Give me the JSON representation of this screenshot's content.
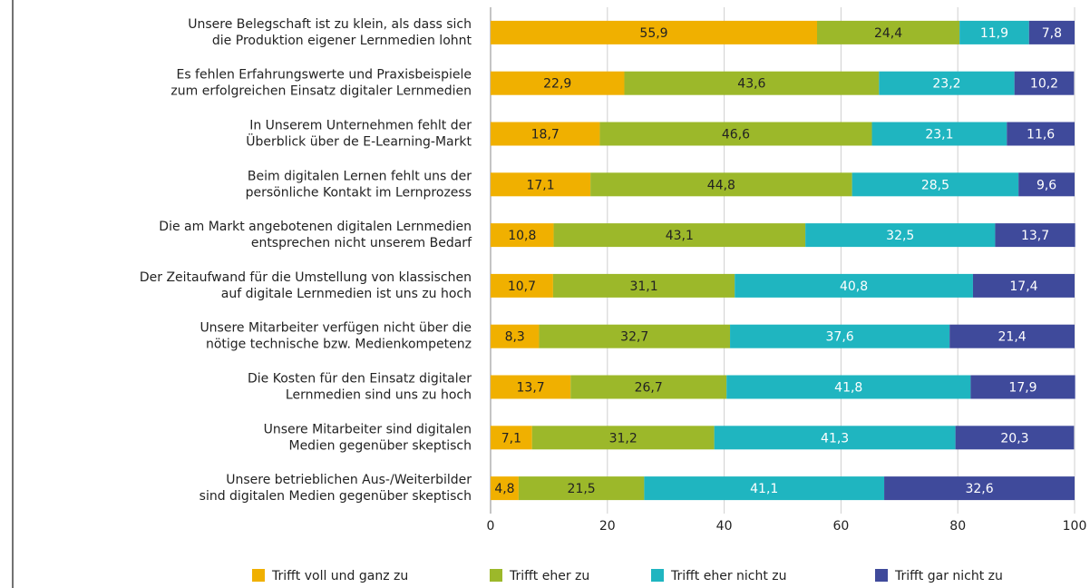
{
  "chart_data": {
    "type": "stacked-barh",
    "categories": [
      [
        "Unsere Belegschaft ist zu klein, als dass sich",
        "die Produktion eigener Lernmedien lohnt"
      ],
      [
        "Es fehlen Erfahrungswerte und Praxisbeispiele",
        "zum erfolgreichen Einsatz digitaler Lernmedien"
      ],
      [
        "In Unserem Unternehmen fehlt der",
        "Überblick über de E-Learning-Markt"
      ],
      [
        "Beim digitalen Lernen fehlt uns der",
        "persönliche Kontakt im Lernprozess"
      ],
      [
        "Die am Markt angebotenen digitalen Lernmedien",
        "entsprechen nicht unserem Bedarf"
      ],
      [
        "Der Zeitaufwand für die Umstellung von klassischen",
        "auf digitale Lernmedien ist uns zu hoch"
      ],
      [
        "Unsere Mitarbeiter verfügen nicht über die",
        "nötige technische bzw. Medienkompetenz"
      ],
      [
        "Die Kosten für den Einsatz digitaler",
        "Lernmedien sind uns zu hoch"
      ],
      [
        "Unsere Mitarbeiter sind digitalen",
        "Medien gegenüber skeptisch"
      ],
      [
        "Unsere betrieblichen Aus-/Weiterbilder",
        "sind digitalen Medien gegenüber skeptisch"
      ]
    ],
    "series": [
      {
        "name": "Trifft voll und ganz zu",
        "color": "#f0b000",
        "label_color": "#222222",
        "values": [
          55.9,
          22.9,
          18.7,
          17.1,
          10.8,
          10.7,
          8.3,
          13.7,
          7.1,
          4.8
        ],
        "value_labels": [
          "55,9",
          "22,9",
          "18,7",
          "17,1",
          "10,8",
          "10,7",
          "8,3",
          "13,7",
          "7,1",
          "4,8"
        ]
      },
      {
        "name": "Trifft eher zu",
        "color": "#9cb82a",
        "label_color": "#222222",
        "values": [
          24.4,
          43.6,
          46.6,
          44.8,
          43.1,
          31.1,
          32.7,
          26.7,
          31.2,
          21.5
        ],
        "value_labels": [
          "24,4",
          "43,6",
          "46,6",
          "44,8",
          "43,1",
          "31,1",
          "32,7",
          "26,7",
          "31,2",
          "21,5"
        ]
      },
      {
        "name": "Trifft eher nicht zu",
        "color": "#1fb5c0",
        "label_color": "#ffffff",
        "values": [
          11.9,
          23.2,
          23.1,
          28.5,
          32.5,
          40.8,
          37.6,
          41.8,
          41.3,
          41.1
        ],
        "value_labels": [
          "11,9",
          "23,2",
          "23,1",
          "28,5",
          "32,5",
          "40,8",
          "37,6",
          "41,8",
          "41,3",
          "41,1"
        ]
      },
      {
        "name": "Trifft gar nicht zu",
        "color": "#3f4a9b",
        "label_color": "#ffffff",
        "values": [
          7.8,
          10.2,
          11.6,
          9.6,
          13.7,
          17.4,
          21.4,
          17.9,
          20.3,
          32.6
        ],
        "value_labels": [
          "7,8",
          "10,2",
          "11,6",
          "9,6",
          "13,7",
          "17,4",
          "21,4",
          "17,9",
          "20,3",
          "32,6"
        ]
      }
    ],
    "xlim": [
      0,
      100
    ],
    "xticks": [
      0,
      20,
      40,
      60,
      80,
      100
    ],
    "grid": true
  }
}
